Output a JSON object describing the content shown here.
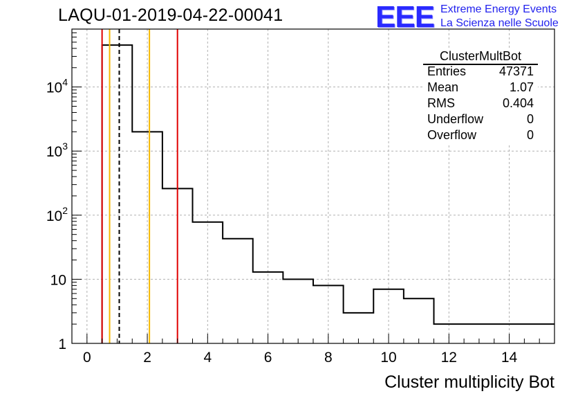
{
  "run_title": "LAQU-01-2019-04-22-00041",
  "logo": {
    "mark": "EEE",
    "line1": "Extreme Energy Events",
    "line2": "La Scienza nelle Scuole"
  },
  "stats": {
    "title": "ClusterMultBot",
    "rows": [
      {
        "label": "Entries",
        "value": "47371"
      },
      {
        "label": "Mean",
        "value": "1.07"
      },
      {
        "label": "RMS",
        "value": "0.404"
      },
      {
        "label": "Underflow",
        "value": "0"
      },
      {
        "label": "Overflow",
        "value": "0"
      }
    ]
  },
  "chart_data": {
    "type": "histogram",
    "title": "LAQU-01-2019-04-22-00041",
    "xlabel": "Cluster multiplicity Bot",
    "ylabel": "",
    "xlim": [
      -0.5,
      15.5
    ],
    "ylim": [
      1,
      80000
    ],
    "yscale": "log",
    "grid": true,
    "x_ticks": [
      0,
      2,
      4,
      6,
      8,
      10,
      12,
      14
    ],
    "x_tick_labels": [
      "0",
      "2",
      "4",
      "6",
      "8",
      "10",
      "12",
      "14"
    ],
    "y_ticks": [
      1,
      10,
      100,
      1000,
      10000
    ],
    "y_tick_labels": [
      {
        "base": "1",
        "exp": ""
      },
      {
        "base": "10",
        "exp": ""
      },
      {
        "base": "10",
        "exp": "2"
      },
      {
        "base": "10",
        "exp": "3"
      },
      {
        "base": "10",
        "exp": "4"
      }
    ],
    "bins": [
      {
        "lo": 0.5,
        "hi": 1.5,
        "value": 45000
      },
      {
        "lo": 1.5,
        "hi": 2.5,
        "value": 2000
      },
      {
        "lo": 2.5,
        "hi": 3.5,
        "value": 260
      },
      {
        "lo": 3.5,
        "hi": 4.5,
        "value": 78
      },
      {
        "lo": 4.5,
        "hi": 5.5,
        "value": 43
      },
      {
        "lo": 5.5,
        "hi": 6.5,
        "value": 13
      },
      {
        "lo": 6.5,
        "hi": 7.5,
        "value": 10
      },
      {
        "lo": 7.5,
        "hi": 8.5,
        "value": 8
      },
      {
        "lo": 8.5,
        "hi": 9.5,
        "value": 3
      },
      {
        "lo": 9.5,
        "hi": 10.5,
        "value": 7
      },
      {
        "lo": 10.5,
        "hi": 11.5,
        "value": 5
      },
      {
        "lo": 11.5,
        "hi": 15.5,
        "value": 2
      }
    ],
    "vertical_lines": [
      {
        "x": 0.5,
        "color": "#e00000",
        "style": "solid"
      },
      {
        "x": 0.75,
        "color": "#f5b800",
        "style": "solid"
      },
      {
        "x": 1.07,
        "color": "#000000",
        "style": "dashed"
      },
      {
        "x": 2.07,
        "color": "#f5b800",
        "style": "solid"
      },
      {
        "x": 3.0,
        "color": "#e00000",
        "style": "solid"
      }
    ]
  }
}
